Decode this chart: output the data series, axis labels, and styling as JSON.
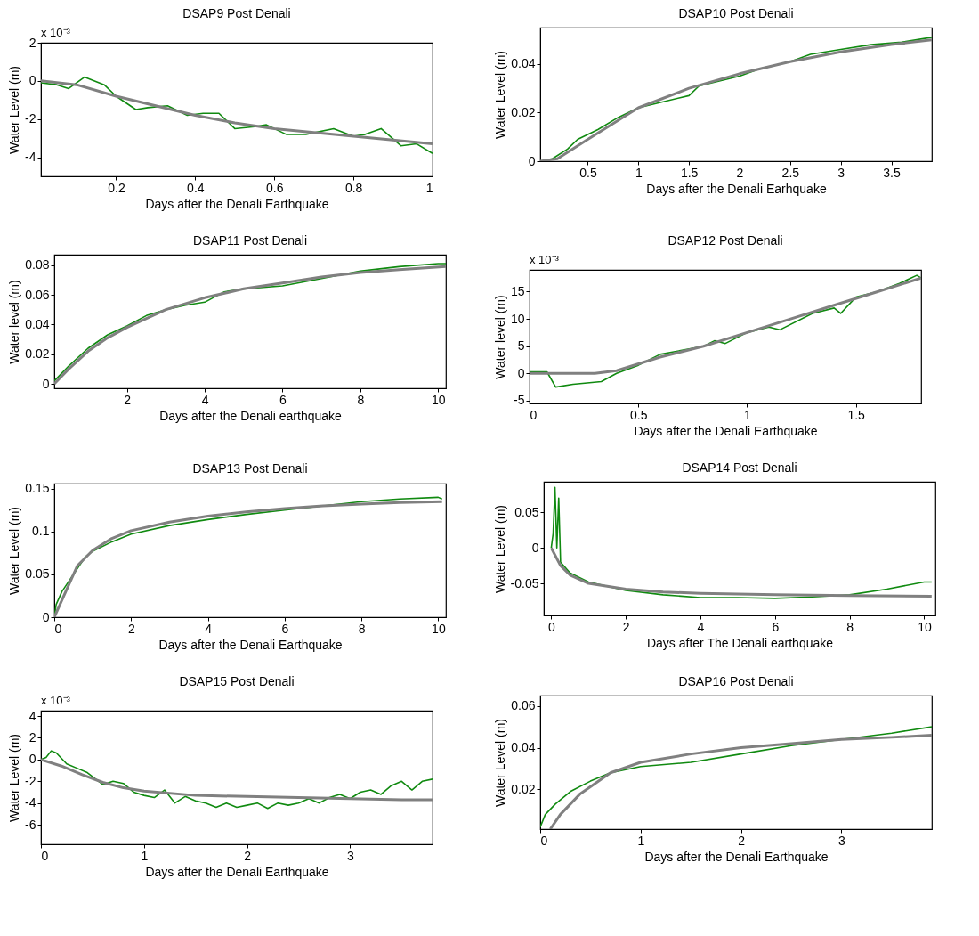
{
  "chart_data": [
    {
      "type": "line",
      "title": "DSAP9 Post Denali",
      "xlabel": "Days after the Denali Earthquake",
      "ylabel": "Water Level (m)",
      "annotations": [
        "x 10⁻³"
      ],
      "xlim": [
        0.01,
        1
      ],
      "xticks": [
        0.2,
        0.4,
        0.6,
        0.8,
        1
      ],
      "ylim": [
        -5,
        2
      ],
      "yticks": [
        -4,
        -2,
        0,
        2
      ],
      "series": [
        {
          "color": "#108a10",
          "x": [
            0.01,
            0.05,
            0.08,
            0.12,
            0.17,
            0.2,
            0.25,
            0.28,
            0.33,
            0.38,
            0.42,
            0.46,
            0.5,
            0.55,
            0.58,
            0.63,
            0.68,
            0.75,
            0.8,
            0.83,
            0.87,
            0.92,
            0.96,
            1
          ],
          "values": [
            -0.1,
            -0.2,
            -0.4,
            0.2,
            -0.2,
            -0.8,
            -1.5,
            -1.4,
            -1.3,
            -1.8,
            -1.7,
            -1.7,
            -2.5,
            -2.4,
            -2.3,
            -2.8,
            -2.8,
            -2.5,
            -2.9,
            -2.8,
            -2.5,
            -3.4,
            -3.3,
            -3.8
          ]
        },
        {
          "color": "#808080",
          "x": [
            0.01,
            0.1,
            0.2,
            0.3,
            0.4,
            0.5,
            0.6,
            0.7,
            0.8,
            0.9,
            1
          ],
          "values": [
            0,
            -0.2,
            -0.8,
            -1.3,
            -1.8,
            -2.2,
            -2.5,
            -2.7,
            -2.9,
            -3.1,
            -3.3
          ]
        }
      ]
    },
    {
      "type": "line",
      "title": "DSAP10 Post Denali",
      "xlabel": "Days after the Denali Earhquake",
      "ylabel": "Water Level (m)",
      "xlim": [
        0.03,
        3.9
      ],
      "xticks": [
        0.5,
        1,
        1.5,
        2,
        2.5,
        3,
        3.5
      ],
      "ylim": [
        0,
        0.055
      ],
      "yticks": [
        0,
        0.02,
        0.04
      ],
      "series": [
        {
          "color": "#108a10",
          "x": [
            0.03,
            0.15,
            0.3,
            0.4,
            0.6,
            0.8,
            1.0,
            1.2,
            1.5,
            1.6,
            1.8,
            2.0,
            2.2,
            2.5,
            2.7,
            3.0,
            3.3,
            3.6,
            3.9
          ],
          "values": [
            0,
            0.001,
            0.005,
            0.009,
            0.013,
            0.018,
            0.022,
            0.024,
            0.027,
            0.031,
            0.033,
            0.035,
            0.038,
            0.041,
            0.044,
            0.046,
            0.048,
            0.049,
            0.051
          ]
        },
        {
          "color": "#808080",
          "x": [
            0.03,
            0.2,
            0.5,
            1,
            1.5,
            2,
            2.5,
            3,
            3.5,
            3.9
          ],
          "values": [
            0,
            0.001,
            0.009,
            0.022,
            0.03,
            0.036,
            0.041,
            0.045,
            0.048,
            0.05
          ]
        }
      ]
    },
    {
      "type": "line",
      "title": "DSAP11 Post Denali",
      "xlabel": "Days after the Denali earthquake",
      "ylabel": "Water level (m)",
      "xlim": [
        0.13,
        10.2
      ],
      "xticks": [
        2,
        4,
        6,
        8,
        10
      ],
      "ylim": [
        -0.003,
        0.087
      ],
      "yticks": [
        0,
        0.02,
        0.04,
        0.06,
        0.08
      ],
      "series": [
        {
          "color": "#108a10",
          "x": [
            0.13,
            0.5,
            1,
            1.5,
            2,
            2.5,
            3,
            3.5,
            4,
            4.5,
            5,
            6,
            7,
            8,
            9,
            10,
            10.2
          ],
          "values": [
            0.002,
            0.012,
            0.024,
            0.033,
            0.039,
            0.046,
            0.05,
            0.053,
            0.055,
            0.062,
            0.064,
            0.066,
            0.071,
            0.076,
            0.079,
            0.081,
            0.081
          ]
        },
        {
          "color": "#808080",
          "x": [
            0.13,
            0.5,
            1,
            1.5,
            2,
            3,
            4,
            5,
            6,
            7,
            8,
            9,
            10.2
          ],
          "values": [
            0,
            0.01,
            0.022,
            0.031,
            0.038,
            0.05,
            0.058,
            0.064,
            0.068,
            0.072,
            0.075,
            0.077,
            0.079
          ]
        }
      ]
    },
    {
      "type": "line",
      "title": "DSAP12 Post Denali",
      "xlabel": "Days after the Denali Earthquake",
      "ylabel": "Water level (m)",
      "annotations": [
        "x 10⁻³"
      ],
      "xlim": [
        0,
        1.8
      ],
      "xticks": [
        0,
        0.5,
        1,
        1.5
      ],
      "ylim": [
        -5.5,
        19
      ],
      "yticks": [
        -5,
        0,
        5,
        10,
        15
      ],
      "series": [
        {
          "color": "#108a10",
          "x": [
            0,
            0.08,
            0.12,
            0.2,
            0.33,
            0.4,
            0.5,
            0.6,
            0.8,
            0.85,
            0.9,
            1,
            1.1,
            1.15,
            1.3,
            1.4,
            1.43,
            1.5,
            1.6,
            1.7,
            1.78,
            1.8
          ],
          "values": [
            0.3,
            0.3,
            -2.5,
            -2,
            -1.5,
            0,
            1.5,
            3.5,
            5,
            6,
            5.5,
            7.5,
            8.5,
            8,
            11,
            12,
            11,
            14,
            15,
            16.5,
            18,
            17.5
          ]
        },
        {
          "color": "#808080",
          "x": [
            0,
            0.3,
            0.4,
            0.6,
            0.8,
            1,
            1.2,
            1.4,
            1.6,
            1.8
          ],
          "values": [
            0,
            0,
            0.5,
            3,
            5,
            7.5,
            10,
            12.5,
            15,
            17.5
          ]
        }
      ]
    },
    {
      "type": "line",
      "title": "DSAP13 Post Denali",
      "xlabel": "Days after the Denali Earthquake",
      "ylabel": "Water Level (m)",
      "xlim": [
        0,
        10.2
      ],
      "xticks": [
        0,
        2,
        4,
        6,
        8,
        10
      ],
      "ylim": [
        0,
        0.156
      ],
      "yticks": [
        0,
        0.05,
        0.1,
        0.15
      ],
      "series": [
        {
          "color": "#108a10",
          "x": [
            0,
            0.05,
            0.2,
            0.5,
            0.8,
            1,
            1.5,
            2,
            3,
            4,
            5,
            6,
            7,
            8,
            9,
            10,
            10.1
          ],
          "values": [
            0,
            0.015,
            0.03,
            0.05,
            0.07,
            0.077,
            0.088,
            0.097,
            0.107,
            0.114,
            0.12,
            0.125,
            0.13,
            0.135,
            0.138,
            0.14,
            0.138
          ]
        },
        {
          "color": "#808080",
          "x": [
            0,
            0.3,
            0.6,
            1,
            1.5,
            2,
            3,
            4,
            5,
            6,
            7,
            8,
            9,
            10.1
          ],
          "values": [
            0,
            0.03,
            0.06,
            0.078,
            0.092,
            0.101,
            0.111,
            0.118,
            0.123,
            0.127,
            0.13,
            0.132,
            0.134,
            0.135
          ]
        }
      ]
    },
    {
      "type": "line",
      "title": "DSAP14 Post Denali",
      "xlabel": "Days after The Denali earthquake",
      "ylabel": "Water Level (m)",
      "xlim": [
        -0.2,
        10.3
      ],
      "xticks": [
        0,
        2,
        4,
        6,
        8,
        10
      ],
      "ylim": [
        -0.095,
        0.093
      ],
      "yticks": [
        -0.05,
        0,
        0.05
      ],
      "series": [
        {
          "color": "#108a10",
          "x": [
            0,
            0.05,
            0.1,
            0.15,
            0.2,
            0.25,
            0.5,
            1,
            2,
            3,
            4,
            5,
            6,
            7,
            8,
            9,
            10,
            10.2
          ],
          "values": [
            0,
            0.02,
            0.085,
            0.0,
            0.07,
            -0.02,
            -0.035,
            -0.048,
            -0.06,
            -0.066,
            -0.07,
            -0.07,
            -0.071,
            -0.069,
            -0.066,
            -0.058,
            -0.048,
            -0.048
          ]
        },
        {
          "color": "#808080",
          "x": [
            0,
            0.25,
            0.5,
            1,
            2,
            3,
            4,
            6,
            8,
            10.2
          ],
          "values": [
            0,
            -0.025,
            -0.038,
            -0.05,
            -0.058,
            -0.062,
            -0.064,
            -0.066,
            -0.067,
            -0.068
          ]
        }
      ]
    },
    {
      "type": "line",
      "title": "DSAP15 Post Denali",
      "xlabel": "Days after the Denali Earthquake",
      "ylabel": "Water Level (m)",
      "annotations": [
        "x 10⁻³"
      ],
      "xlim": [
        0,
        3.8
      ],
      "xticks": [
        0,
        1,
        2,
        3
      ],
      "ylim": [
        -7.8,
        4.5
      ],
      "yticks": [
        -6,
        -4,
        -2,
        0,
        2,
        4
      ],
      "series": [
        {
          "color": "#108a10",
          "x": [
            0,
            0.05,
            0.1,
            0.15,
            0.25,
            0.35,
            0.45,
            0.6,
            0.7,
            0.8,
            0.9,
            1.0,
            1.1,
            1.2,
            1.3,
            1.4,
            1.5,
            1.6,
            1.7,
            1.8,
            1.9,
            2.0,
            2.1,
            2.2,
            2.3,
            2.4,
            2.5,
            2.6,
            2.7,
            2.8,
            2.9,
            3.0,
            3.1,
            3.2,
            3.3,
            3.4,
            3.5,
            3.6,
            3.7,
            3.8
          ],
          "values": [
            0,
            0.2,
            0.8,
            0.6,
            -0.4,
            -0.8,
            -1.2,
            -2.3,
            -2.0,
            -2.2,
            -3.0,
            -3.3,
            -3.5,
            -2.8,
            -4.0,
            -3.4,
            -3.8,
            -4.0,
            -4.4,
            -4.0,
            -4.4,
            -4.2,
            -4.0,
            -4.5,
            -4.0,
            -4.2,
            -4.0,
            -3.6,
            -4.0,
            -3.5,
            -3.2,
            -3.6,
            -3.0,
            -2.8,
            -3.2,
            -2.4,
            -2.0,
            -2.8,
            -2.0,
            -1.8
          ]
        },
        {
          "color": "#808080",
          "x": [
            0,
            0.2,
            0.4,
            0.6,
            0.8,
            1,
            1.5,
            2,
            2.5,
            3,
            3.5,
            3.8
          ],
          "values": [
            0,
            -0.6,
            -1.4,
            -2.1,
            -2.6,
            -2.9,
            -3.3,
            -3.4,
            -3.5,
            -3.6,
            -3.7,
            -3.7
          ]
        }
      ]
    },
    {
      "type": "line",
      "title": "DSAP16 Post Denali",
      "xlabel": "Days after the Denali Earthquake",
      "ylabel": "Water Level (m)",
      "xlim": [
        0,
        3.9
      ],
      "xticks": [
        0,
        1,
        2,
        3
      ],
      "ylim": [
        0.001,
        0.065
      ],
      "yticks": [
        0.02,
        0.04,
        0.06
      ],
      "series": [
        {
          "color": "#108a10",
          "x": [
            0,
            0.05,
            0.15,
            0.3,
            0.5,
            0.7,
            1,
            1.5,
            2,
            2.5,
            3,
            3.5,
            3.9
          ],
          "values": [
            0.002,
            0.008,
            0.013,
            0.019,
            0.024,
            0.028,
            0.031,
            0.033,
            0.037,
            0.041,
            0.044,
            0.047,
            0.05
          ]
        },
        {
          "color": "#808080",
          "x": [
            0.1,
            0.2,
            0.4,
            0.7,
            1,
            1.5,
            2,
            2.5,
            3,
            3.5,
            3.9
          ],
          "values": [
            0.001,
            0.008,
            0.018,
            0.028,
            0.033,
            0.037,
            0.04,
            0.042,
            0.044,
            0.045,
            0.046
          ]
        }
      ]
    }
  ]
}
